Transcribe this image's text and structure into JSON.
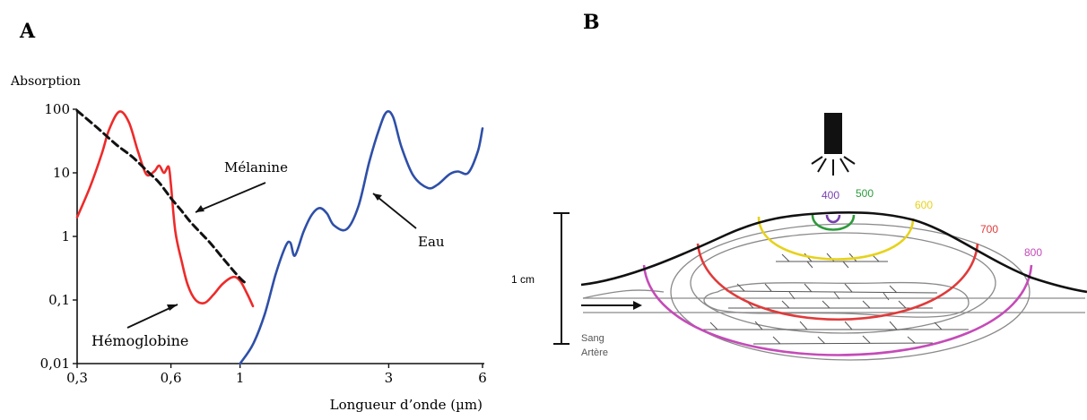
{
  "panel_a": {
    "label": "A",
    "annotations": {
      "melanine": "Mélanine",
      "eau": "Eau",
      "hemoglobine": "Hémoglobine"
    },
    "colors": {
      "hemoglobine": "#ee2a2a",
      "eau": "#2e4fa8",
      "melanine": "#111111"
    }
  },
  "panel_b": {
    "label": "B",
    "scale_label": "1 cm",
    "vessel_label_1": "Sang",
    "vessel_label_2": "Artère",
    "light_source_icon": "lamp-icon",
    "wavelengths": [
      {
        "value": "400",
        "color": "#7a3fb0"
      },
      {
        "value": "500",
        "color": "#2e9a3c"
      },
      {
        "value": "600",
        "color": "#e6d21a"
      },
      {
        "value": "700",
        "color": "#e03a3a"
      },
      {
        "value": "800",
        "color": "#c44bb8"
      }
    ]
  },
  "chart_data": {
    "type": "line",
    "title": "",
    "xlabel": "Longueur d’onde (µm)",
    "ylabel": "Absorption",
    "x_scale": "log",
    "y_scale": "log",
    "xlim": [
      0.3,
      6
    ],
    "ylim": [
      0.01,
      100
    ],
    "x_ticks": [
      0.3,
      0.6,
      1,
      3,
      6
    ],
    "x_tick_labels": [
      "0,3",
      "0,6",
      "1",
      "3",
      "6"
    ],
    "y_ticks": [
      100,
      10,
      1,
      0.1,
      0.01
    ],
    "y_tick_labels": [
      "100",
      "10",
      "1",
      "0,1",
      "0,01"
    ],
    "grid": false,
    "legend": "none",
    "series": [
      {
        "name": "Hémoglobine",
        "style": "solid",
        "color": "#ee2a2a",
        "x": [
          0.3,
          0.33,
          0.36,
          0.38,
          0.41,
          0.44,
          0.47,
          0.5,
          0.53,
          0.55,
          0.57,
          0.59,
          0.6,
          0.62,
          0.65,
          0.68,
          0.72,
          0.77,
          0.82,
          0.88,
          0.95,
          1.0,
          1.05,
          1.1
        ],
        "y": [
          2,
          6,
          20,
          48,
          92,
          62,
          22,
          9.5,
          10.5,
          13,
          10,
          12.5,
          6.5,
          1.2,
          0.4,
          0.17,
          0.1,
          0.09,
          0.12,
          0.18,
          0.23,
          0.2,
          0.13,
          0.08
        ]
      },
      {
        "name": "Mélanine",
        "style": "dashed",
        "color": "#111111",
        "x": [
          0.3,
          0.35,
          0.4,
          0.45,
          0.5,
          0.55,
          0.6,
          0.65,
          0.7,
          0.8,
          0.9,
          1.0,
          1.05
        ],
        "y": [
          95,
          50,
          28,
          18,
          11,
          7,
          4,
          2.5,
          1.6,
          0.8,
          0.4,
          0.22,
          0.18
        ]
      },
      {
        "name": "Eau",
        "style": "solid",
        "color": "#2e4fa8",
        "x": [
          1.0,
          1.1,
          1.2,
          1.3,
          1.4,
          1.45,
          1.5,
          1.6,
          1.7,
          1.8,
          1.9,
          2.0,
          2.2,
          2.4,
          2.6,
          2.8,
          2.95,
          3.1,
          3.3,
          3.6,
          4.0,
          4.3,
          4.7,
          5.0,
          5.4,
          5.8,
          6.0
        ],
        "y": [
          0.01,
          0.02,
          0.06,
          0.25,
          0.7,
          0.8,
          0.5,
          1.2,
          2.2,
          2.8,
          2.3,
          1.5,
          1.3,
          3,
          15,
          50,
          90,
          75,
          25,
          9,
          5.8,
          6.5,
          9.5,
          10.5,
          10,
          22,
          50
        ]
      }
    ]
  }
}
